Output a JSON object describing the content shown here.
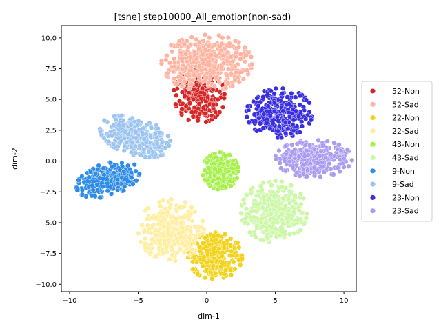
{
  "chart_data": {
    "type": "scatter",
    "title": "[tsne] step10000_All_emotion(non-sad)",
    "xlabel": "dim-1",
    "ylabel": "dim-2",
    "xlim": [
      -10.6,
      10.9
    ],
    "ylim": [
      -10.6,
      11.0
    ],
    "xticks": [
      -10,
      -5,
      0,
      5,
      10
    ],
    "yticks": [
      -10.0,
      -7.5,
      -5.0,
      -2.5,
      0.0,
      2.5,
      5.0,
      7.5,
      10.0
    ],
    "grid": false,
    "legend_position": "right-outside",
    "series": [
      {
        "name": "52-Non",
        "color": "#d62728",
        "clusters": [
          {
            "cx": -0.5,
            "cy": 5.5,
            "rx": 1.9,
            "ry": 2.4,
            "n": 260
          }
        ]
      },
      {
        "name": "52-Sad",
        "color": "#ffb3a0",
        "clusters": [
          {
            "cx": 0.0,
            "cy": 8.0,
            "rx": 3.3,
            "ry": 2.3,
            "n": 460
          }
        ]
      },
      {
        "name": "22-Non",
        "color": "#f2d21b",
        "clusters": [
          {
            "cx": 0.6,
            "cy": -7.7,
            "rx": 2.0,
            "ry": 1.9,
            "n": 300
          }
        ]
      },
      {
        "name": "22-Sad",
        "color": "#ffeea0",
        "clusters": [
          {
            "cx": -2.6,
            "cy": -5.6,
            "rx": 2.4,
            "ry": 2.5,
            "n": 340
          }
        ]
      },
      {
        "name": "43-Non",
        "color": "#a6f04a",
        "clusters": [
          {
            "cx": 1.0,
            "cy": -0.8,
            "rx": 1.3,
            "ry": 1.5,
            "n": 280
          }
        ]
      },
      {
        "name": "43-Sad",
        "color": "#ccf7a6",
        "clusters": [
          {
            "cx": 4.9,
            "cy": -4.1,
            "rx": 2.4,
            "ry": 2.5,
            "n": 340
          }
        ]
      },
      {
        "name": "9-Non",
        "color": "#2e8be8",
        "clusters": [
          {
            "cx": -7.2,
            "cy": -1.5,
            "rx": 2.4,
            "ry": 1.3,
            "n": 300,
            "tilt": 0.35
          }
        ]
      },
      {
        "name": "9-Sad",
        "color": "#9cc4f0",
        "clusters": [
          {
            "cx": -5.2,
            "cy": 2.0,
            "rx": 2.7,
            "ry": 1.5,
            "n": 320,
            "tilt": -0.35
          }
        ]
      },
      {
        "name": "23-Non",
        "color": "#3a2fe0",
        "clusters": [
          {
            "cx": 5.3,
            "cy": 3.9,
            "rx": 2.4,
            "ry": 2.0,
            "n": 300
          }
        ]
      },
      {
        "name": "23-Sad",
        "color": "#ab9cf2",
        "clusters": [
          {
            "cx": 7.8,
            "cy": 0.2,
            "rx": 2.8,
            "ry": 1.5,
            "n": 320
          }
        ]
      }
    ]
  }
}
